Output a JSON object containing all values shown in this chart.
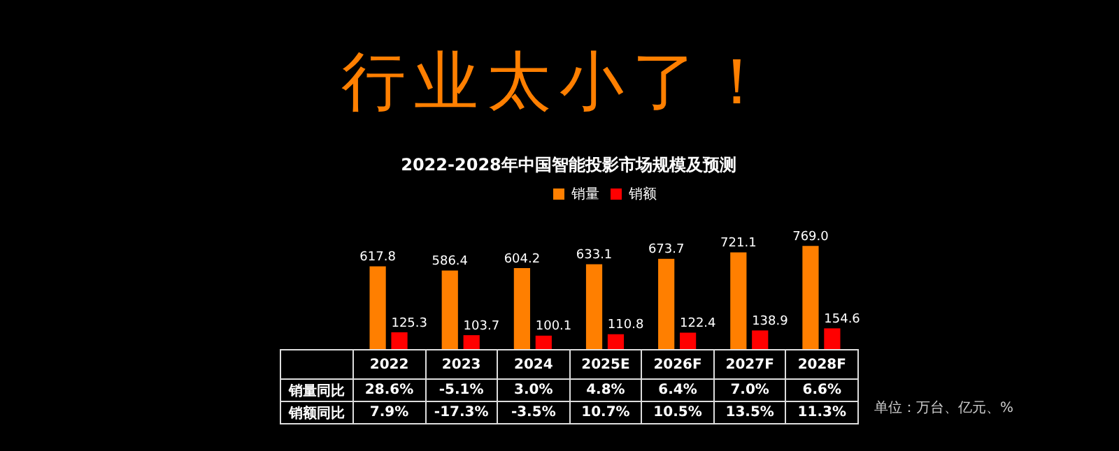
{
  "chart_data": {
    "type": "bar",
    "title": "行业太小了！",
    "subtitle": "2022-2028年中国智能投影市场规模及预测",
    "categories": [
      "2022",
      "2023",
      "2024",
      "2025E",
      "2026F",
      "2027F",
      "2028F"
    ],
    "series": [
      {
        "name": "销量",
        "color": "#ff7f00",
        "values": [
          617.8,
          586.4,
          604.2,
          633.1,
          673.7,
          721.1,
          769.0
        ],
        "value_labels": [
          "617.8",
          "586.4",
          "604.2",
          "633.1",
          "673.7",
          "721.1",
          "769.0"
        ]
      },
      {
        "name": "销额",
        "color": "#ff0000",
        "values": [
          125.3,
          103.7,
          100.1,
          110.8,
          122.4,
          138.9,
          154.6
        ],
        "value_labels": [
          "125.3",
          "103.7",
          "100.1",
          "110.8",
          "122.4",
          "138.9",
          "154.6"
        ]
      }
    ],
    "legend": "top",
    "tick_labels": false,
    "annotations": [
      "销量同比",
      "28.6%",
      "-5.1%",
      "3.0%",
      "4.8%",
      "6.4%",
      "7.0%",
      "6.6%",
      "销额同比",
      "7.9%",
      "-17.3%",
      "-3.5%",
      "10.7%",
      "10.5%",
      "13.5%",
      "11.3%",
      "单位：万台、亿元、%"
    ]
  }
}
